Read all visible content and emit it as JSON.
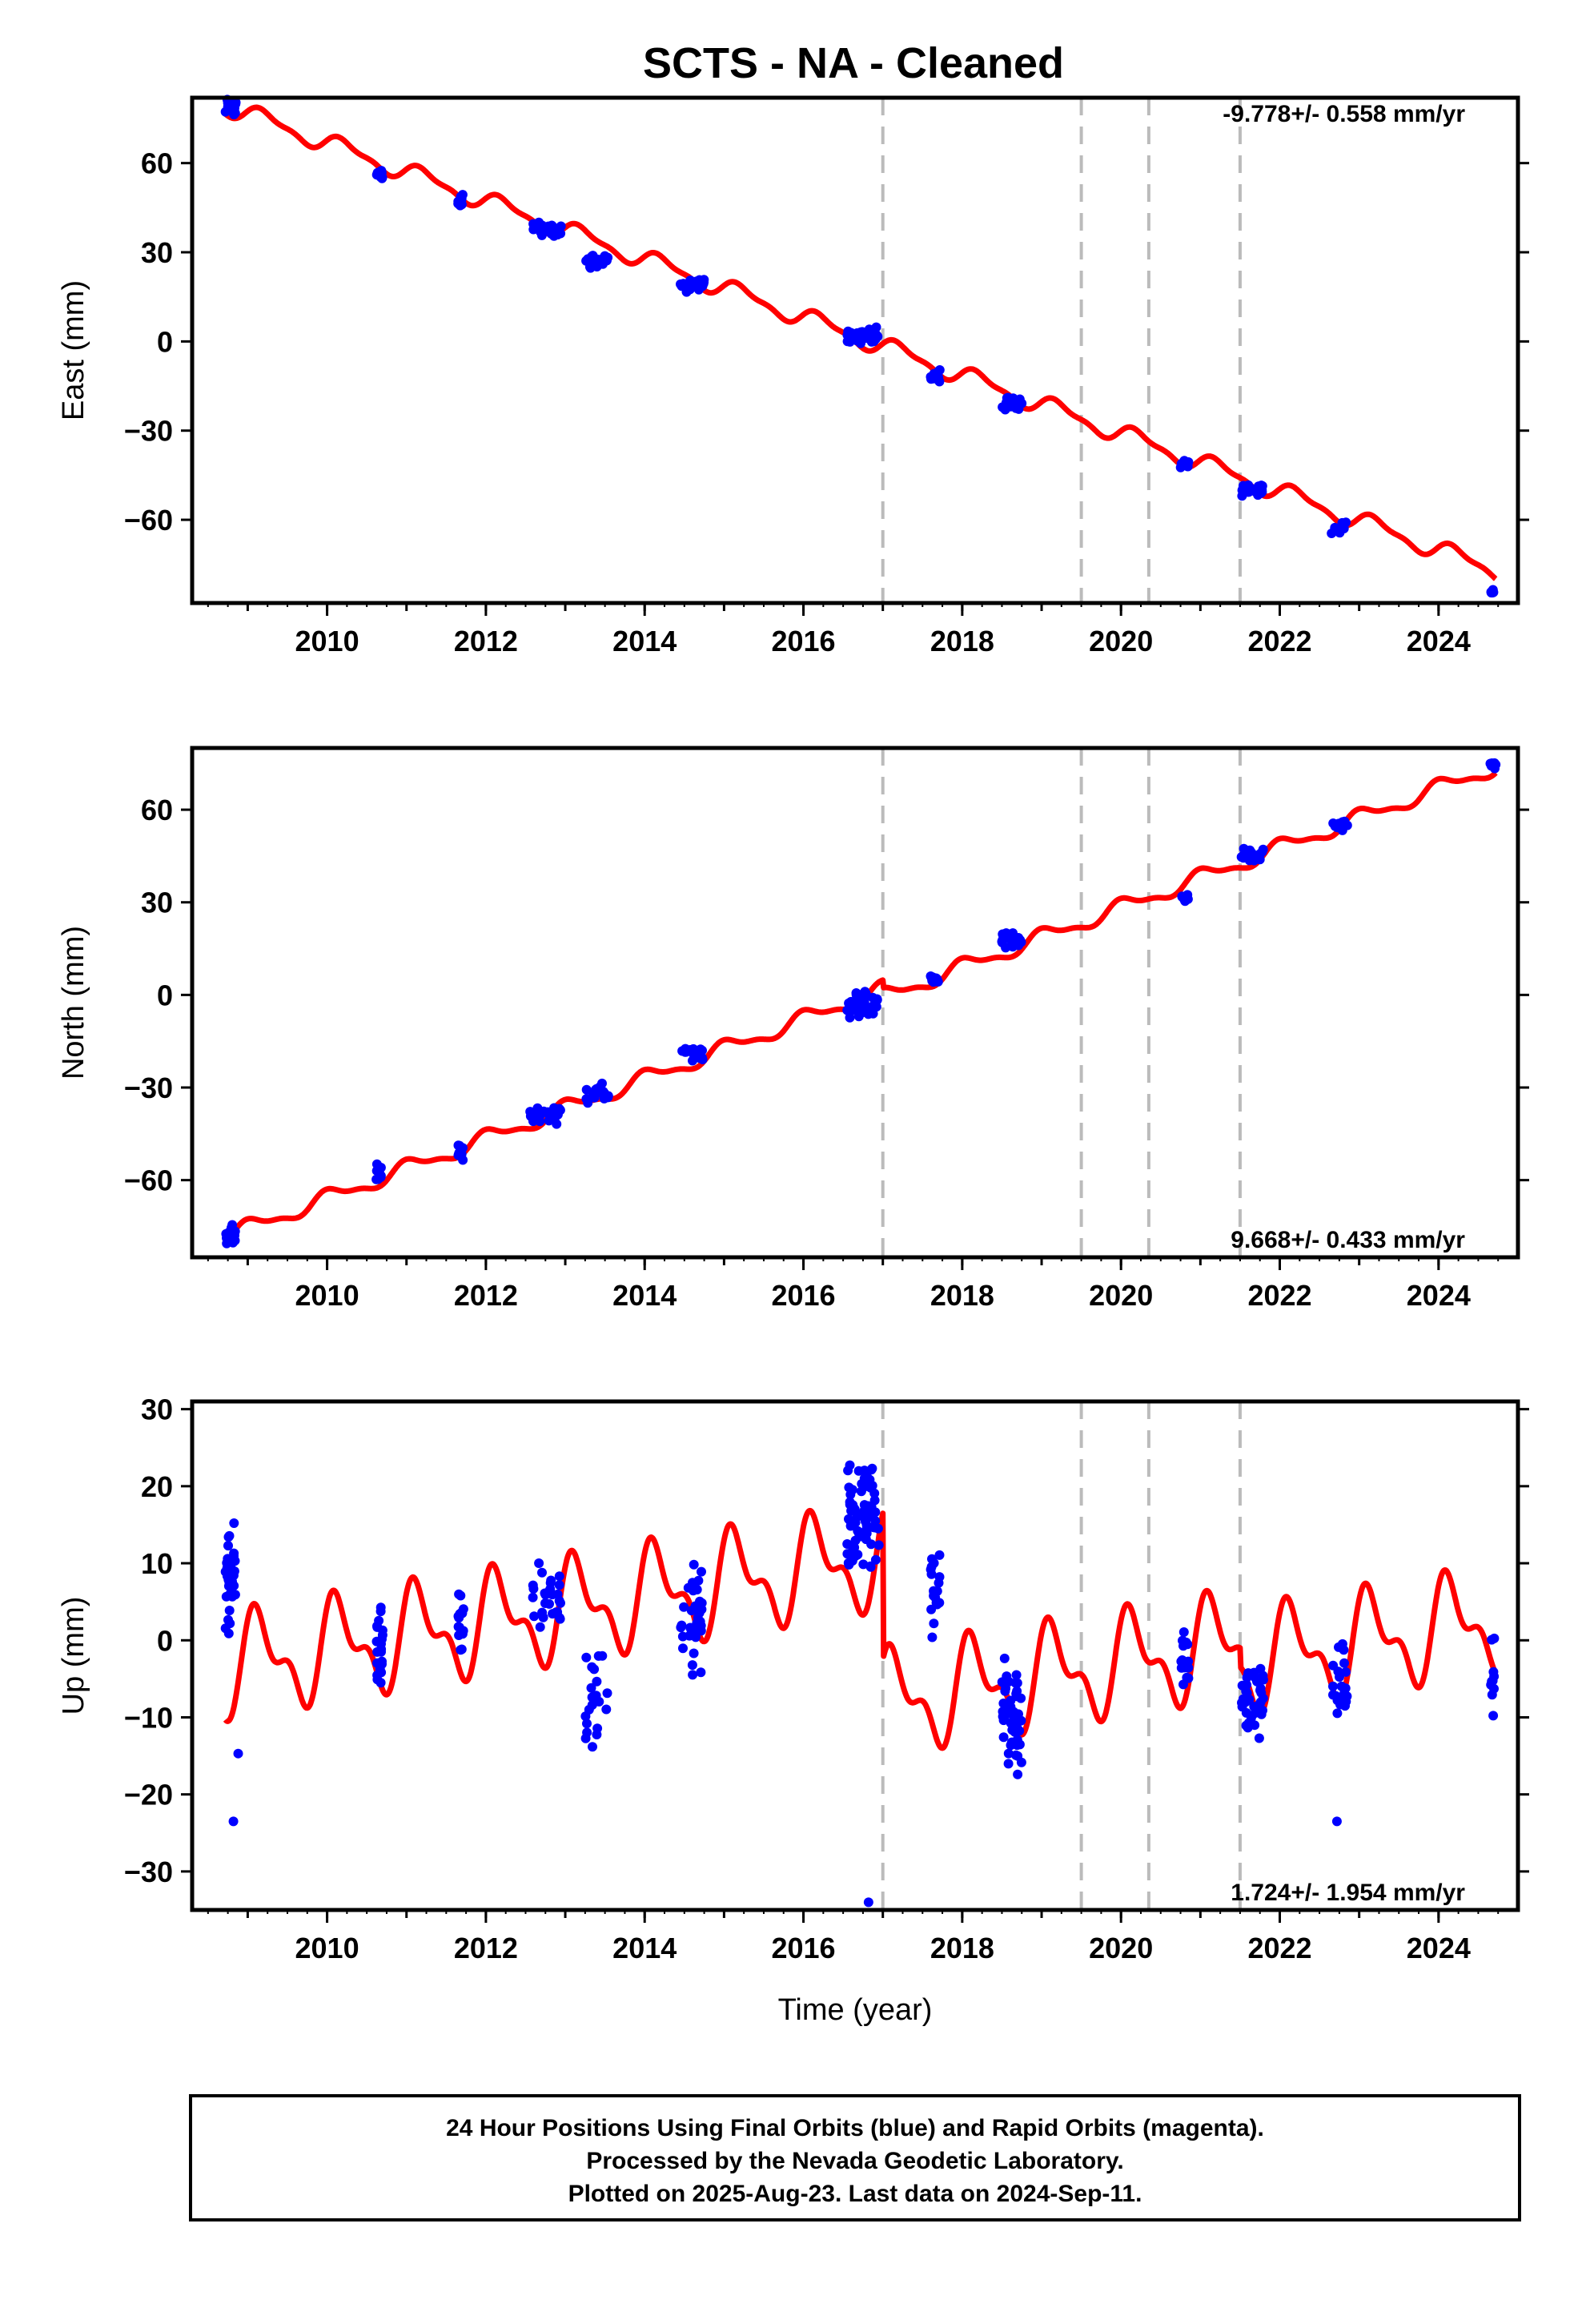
{
  "chart_data": [
    {
      "type": "scatter",
      "title": "SCTS  - NA - Cleaned",
      "ylabel": "East (mm)",
      "xlabel": "",
      "xlim": [
        2008.3,
        2025.0
      ],
      "ylim": [
        -88,
        82
      ],
      "yticks": [
        -60,
        -30,
        0,
        30,
        60
      ],
      "xticks": [
        2010,
        2012,
        2014,
        2016,
        2018,
        2020,
        2022,
        2024
      ],
      "rate_text": "-9.778+/- 0.558 mm/yr",
      "rate_position": "top-right",
      "model": {
        "offset": 79.5,
        "slope": -9.778,
        "annual_amp": 2.8,
        "semiannual_amp": 1.1,
        "phase": 0.2,
        "steps": [],
        "end_year": 2024.72
      },
      "breaks": [
        2017.0,
        2019.5,
        2020.35,
        2021.5
      ],
      "clusters": [
        {
          "t": [
            2008.72,
            2008.85
          ],
          "y": 79,
          "spread": 4,
          "n": 26
        },
        {
          "t": [
            2010.62,
            2010.7
          ],
          "y": 56,
          "spread": 3,
          "n": 12
        },
        {
          "t": [
            2011.65,
            2011.72
          ],
          "y": 47,
          "spread": 3,
          "n": 10
        },
        {
          "t": [
            2012.55,
            2012.95
          ],
          "y": 38,
          "spread": 3,
          "n": 28
        },
        {
          "t": [
            2013.25,
            2013.55
          ],
          "y": 27,
          "spread": 3,
          "n": 20
        },
        {
          "t": [
            2014.45,
            2014.75
          ],
          "y": 19,
          "spread": 3,
          "n": 24
        },
        {
          "t": [
            2016.55,
            2016.95
          ],
          "y": 2,
          "spread": 3,
          "n": 40
        },
        {
          "t": [
            2017.6,
            2017.72
          ],
          "y": -11,
          "spread": 3,
          "n": 12
        },
        {
          "t": [
            2018.5,
            2018.75
          ],
          "y": -21,
          "spread": 3,
          "n": 22
        },
        {
          "t": [
            2020.75,
            2020.85
          ],
          "y": -42,
          "spread": 2,
          "n": 8
        },
        {
          "t": [
            2021.5,
            2021.8
          ],
          "y": -50,
          "spread": 2.5,
          "n": 22
        },
        {
          "t": [
            2022.65,
            2022.85
          ],
          "y": -63,
          "spread": 3,
          "n": 14
        },
        {
          "t": [
            2024.65,
            2024.72
          ],
          "y": -84,
          "spread": 2,
          "n": 6
        }
      ]
    },
    {
      "type": "scatter",
      "title": "",
      "ylabel": "North (mm)",
      "xlabel": "",
      "xlim": [
        2008.3,
        2025.0
      ],
      "ylim": [
        -85,
        80
      ],
      "yticks": [
        -60,
        -30,
        0,
        30,
        60
      ],
      "xticks": [
        2010,
        2012,
        2014,
        2016,
        2018,
        2020,
        2022,
        2024
      ],
      "rate_text": "9.668+/- 0.433 mm/yr",
      "rate_position": "bottom-right",
      "model": {
        "offset": -78.5,
        "slope": 9.668,
        "annual_amp": 2.4,
        "semiannual_amp": 0.9,
        "phase": 1.3,
        "steps": [
          [
            2017.0,
            -2.5
          ]
        ],
        "end_year": 2024.72
      },
      "breaks": [
        2017.0,
        2019.5,
        2020.35,
        2021.5
      ],
      "clusters": [
        {
          "t": [
            2008.72,
            2008.85
          ],
          "y": -77,
          "spread": 4,
          "n": 16
        },
        {
          "t": [
            2010.62,
            2010.7
          ],
          "y": -57,
          "spread": 3,
          "n": 10
        },
        {
          "t": [
            2011.65,
            2011.72
          ],
          "y": -51,
          "spread": 4,
          "n": 10
        },
        {
          "t": [
            2012.55,
            2012.95
          ],
          "y": -39,
          "spread": 3,
          "n": 26
        },
        {
          "t": [
            2013.25,
            2013.55
          ],
          "y": -32,
          "spread": 4,
          "n": 18
        },
        {
          "t": [
            2014.45,
            2014.75
          ],
          "y": -19,
          "spread": 3,
          "n": 22
        },
        {
          "t": [
            2016.55,
            2016.95
          ],
          "y": -3,
          "spread": 5,
          "n": 40
        },
        {
          "t": [
            2017.6,
            2017.72
          ],
          "y": 5,
          "spread": 2,
          "n": 10
        },
        {
          "t": [
            2018.5,
            2018.75
          ],
          "y": 18,
          "spread": 3,
          "n": 22
        },
        {
          "t": [
            2020.75,
            2020.85
          ],
          "y": 32,
          "spread": 2,
          "n": 8
        },
        {
          "t": [
            2021.5,
            2021.8
          ],
          "y": 45,
          "spread": 3,
          "n": 26
        },
        {
          "t": [
            2022.65,
            2022.85
          ],
          "y": 55,
          "spread": 2,
          "n": 14
        },
        {
          "t": [
            2024.65,
            2024.72
          ],
          "y": 74,
          "spread": 2,
          "n": 6
        }
      ]
    },
    {
      "type": "scatter",
      "title": "",
      "ylabel": "Up (mm)",
      "xlabel": "Time (year)",
      "xlim": [
        2008.3,
        2025.0
      ],
      "ylim": [
        -35,
        31
      ],
      "yticks": [
        -30,
        -20,
        -10,
        0,
        10,
        20,
        30
      ],
      "xticks": [
        2010,
        2012,
        2014,
        2016,
        2018,
        2020,
        2022,
        2024
      ],
      "rate_text": "1.724+/- 1.954 mm/yr",
      "rate_position": "bottom-right",
      "model": {
        "offset": -3.5,
        "slope": 1.724,
        "annual_amp": 5.5,
        "semiannual_amp": 3.0,
        "phase": 0.6,
        "steps": [
          [
            2017.0,
            -19.0
          ],
          [
            2021.5,
            -2.5
          ]
        ],
        "end_year": 2024.72
      },
      "breaks": [
        2017.0,
        2019.5,
        2020.35,
        2021.5
      ],
      "clusters": [
        {
          "t": [
            2008.72,
            2008.85
          ],
          "y": 8,
          "spread": 8,
          "n": 40
        },
        {
          "t": [
            2010.62,
            2010.7
          ],
          "y": 0,
          "spread": 7,
          "n": 22
        },
        {
          "t": [
            2011.65,
            2011.72
          ],
          "y": 2,
          "spread": 5,
          "n": 16
        },
        {
          "t": [
            2012.55,
            2012.95
          ],
          "y": 6,
          "spread": 5,
          "n": 28
        },
        {
          "t": [
            2013.25,
            2013.55
          ],
          "y": -8,
          "spread": 8,
          "n": 22
        },
        {
          "t": [
            2014.45,
            2014.75
          ],
          "y": 3,
          "spread": 8,
          "n": 36
        },
        {
          "t": [
            2016.55,
            2016.95
          ],
          "y": 16,
          "spread": 8,
          "n": 80
        },
        {
          "t": [
            2017.6,
            2017.72
          ],
          "y": 6,
          "spread": 6,
          "n": 20
        },
        {
          "t": [
            2018.5,
            2018.75
          ],
          "y": -10,
          "spread": 8,
          "n": 48
        },
        {
          "t": [
            2020.75,
            2020.85
          ],
          "y": -3,
          "spread": 5,
          "n": 14
        },
        {
          "t": [
            2021.5,
            2021.8
          ],
          "y": -8,
          "spread": 6,
          "n": 40
        },
        {
          "t": [
            2022.65,
            2022.85
          ],
          "y": -6,
          "spread": 6,
          "n": 24
        },
        {
          "t": [
            2024.65,
            2024.72
          ],
          "y": -5,
          "spread": 6,
          "n": 10
        }
      ],
      "extra_points": [
        [
          2008.82,
          -23.5
        ],
        [
          2008.88,
          -14.7
        ],
        [
          2016.82,
          -34
        ],
        [
          2022.72,
          -23.5
        ]
      ]
    }
  ],
  "footer": {
    "line1": "24 Hour Positions Using Final Orbits (blue) and Rapid Orbits (magenta).",
    "line2": "Processed by the Nevada Geodetic Laboratory.",
    "line3": "Plotted on 2025-Aug-23. Last data on 2024-Sep-11."
  },
  "colors": {
    "points": "#0000ff",
    "model": "#ff0000",
    "breaks": "#bbbbbb",
    "frame": "#000000"
  }
}
